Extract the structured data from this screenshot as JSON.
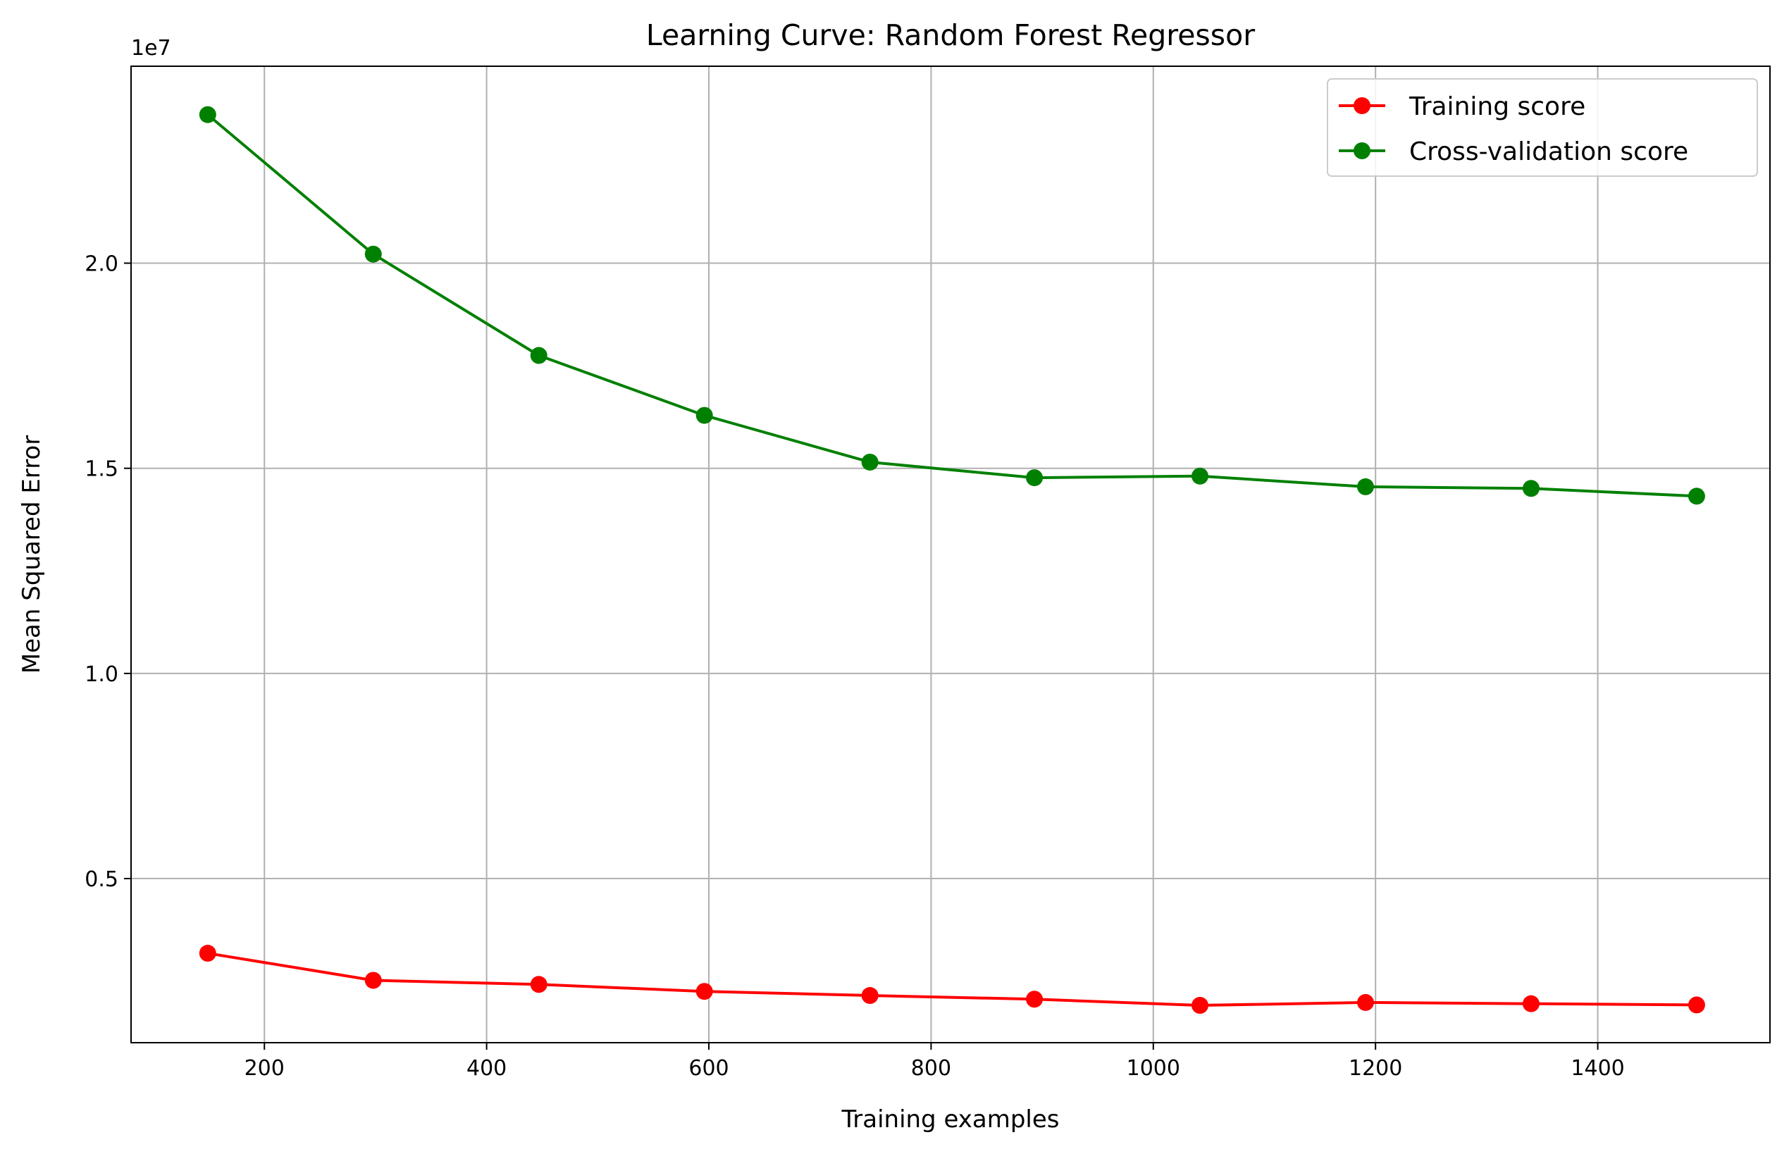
{
  "chart_data": {
    "type": "line",
    "title": "Learning Curve: Random Forest Regressor",
    "xlabel": "Training examples",
    "ylabel": "Mean Squared Error",
    "y_offset_label": "1e7",
    "xlim": [
      80,
      1555
    ],
    "ylim": [
      0.1,
      2.48
    ],
    "x_ticks": [
      200,
      400,
      600,
      800,
      1000,
      1200,
      1400
    ],
    "x_tick_labels": [
      "200",
      "400",
      "600",
      "800",
      "1000",
      "1200",
      "1400"
    ],
    "y_ticks": [
      0.5,
      1.0,
      1.5,
      2.0
    ],
    "y_tick_labels": [
      "0.5",
      "1.0",
      "1.5",
      "2.0"
    ],
    "grid": true,
    "legend_position": "top-right",
    "x": [
      149,
      298,
      447,
      596,
      745,
      893,
      1042,
      1191,
      1340,
      1489
    ],
    "series": [
      {
        "name": "Training score",
        "color": "#ff0000",
        "marker": "circle",
        "values": [
          0.318,
          0.252,
          0.242,
          0.225,
          0.215,
          0.206,
          0.191,
          0.198,
          0.195,
          0.192
        ]
      },
      {
        "name": "Cross-validation score",
        "color": "#008000",
        "marker": "circle",
        "values": [
          2.362,
          2.022,
          1.775,
          1.629,
          1.515,
          1.477,
          1.481,
          1.455,
          1.451,
          1.432
        ]
      }
    ]
  }
}
